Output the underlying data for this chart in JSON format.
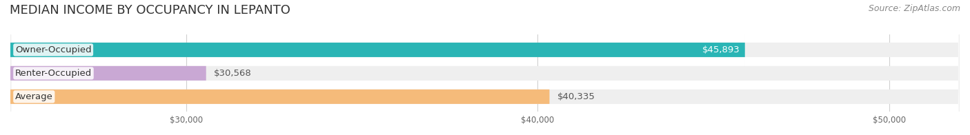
{
  "title": "MEDIAN INCOME BY OCCUPANCY IN LEPANTO",
  "source": "Source: ZipAtlas.com",
  "categories": [
    "Owner-Occupied",
    "Renter-Occupied",
    "Average"
  ],
  "values": [
    45893,
    30568,
    40335
  ],
  "bar_colors": [
    "#2ab5b5",
    "#c9a8d4",
    "#f5bb7a"
  ],
  "bar_bg_color": "#efefef",
  "value_labels": [
    "$45,893",
    "$30,568",
    "$40,335"
  ],
  "xlim": [
    25000,
    52000
  ],
  "xticks": [
    30000,
    40000,
    50000
  ],
  "xtick_labels": [
    "$30,000",
    "$40,000",
    "$50,000"
  ],
  "title_fontsize": 13,
  "source_fontsize": 9,
  "label_fontsize": 9.5,
  "value_fontsize": 9.5,
  "bar_height": 0.62,
  "figure_bg": "#ffffff",
  "axes_bg": "#ffffff",
  "grid_color": "#d0d0d0"
}
